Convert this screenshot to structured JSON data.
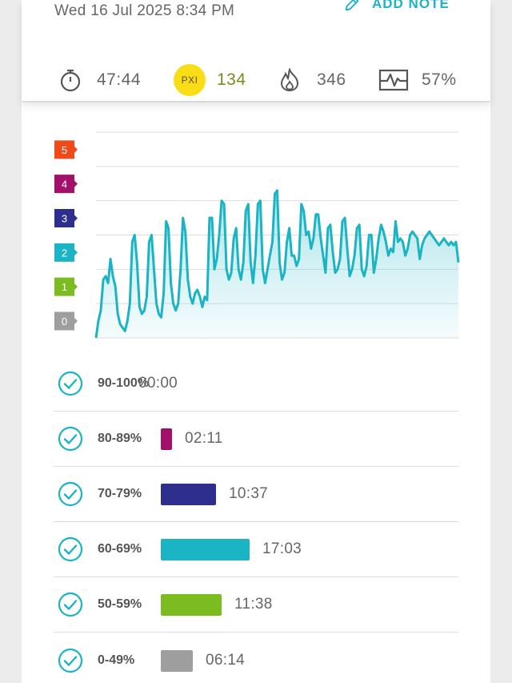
{
  "header": {
    "date": "Wed 16 Jul 2025 8:34 PM",
    "add_note_label": "ADD NOTE",
    "add_note_icon": "pencil-icon"
  },
  "stats": {
    "duration": "47:44",
    "pxi_label": "PXI",
    "pxi_value": "134",
    "calories": "346",
    "effort": "57%"
  },
  "zone_legend": [
    {
      "label": "5",
      "color": "#f04a1a"
    },
    {
      "label": "4",
      "color": "#a2106a"
    },
    {
      "label": "3",
      "color": "#2e2e8e"
    },
    {
      "label": "2",
      "color": "#1ab4c4"
    },
    {
      "label": "1",
      "color": "#7cbc20"
    },
    {
      "label": "0",
      "color": "#9e9e9e"
    }
  ],
  "zones": [
    {
      "label": "90-100%",
      "time": "00:00",
      "color": "#f04a1a",
      "minutes": 0.0
    },
    {
      "label": "80-89%",
      "time": "02:11",
      "color": "#a2106a",
      "minutes": 2.18
    },
    {
      "label": "70-79%",
      "time": "10:37",
      "color": "#2e2e8e",
      "minutes": 10.62
    },
    {
      "label": "60-69%",
      "time": "17:03",
      "color": "#1ab4c4",
      "minutes": 17.05
    },
    {
      "label": "50-59%",
      "time": "11:38",
      "color": "#7cbc20",
      "minutes": 11.63
    },
    {
      "label": "0-49%",
      "time": "06:14",
      "color": "#9e9e9e",
      "minutes": 6.23
    }
  ],
  "chart_data": {
    "type": "area",
    "title": "",
    "xlabel": "",
    "ylabel": "",
    "ylim": [
      0,
      6
    ],
    "y_zone_labels": [
      "0",
      "1",
      "2",
      "3",
      "4",
      "5"
    ],
    "grid": true,
    "line_color": "#1ab4c4",
    "x": [
      0,
      1,
      2,
      3,
      4,
      5,
      6,
      7,
      8,
      9,
      10,
      11,
      12,
      13,
      14,
      15,
      16,
      17,
      18,
      19,
      20,
      21,
      22,
      23,
      24,
      25,
      26,
      27,
      28,
      29,
      30,
      31,
      32,
      33,
      34,
      35,
      36,
      37,
      38,
      39,
      40,
      41,
      42,
      43,
      44,
      45,
      46,
      47,
      48,
      49,
      50,
      51,
      52,
      53,
      54,
      55,
      56,
      57,
      58,
      59,
      60,
      61,
      62,
      63,
      64,
      65,
      66,
      67,
      68,
      69,
      70,
      71,
      72,
      73,
      74,
      75,
      76,
      77,
      78,
      79,
      80,
      81,
      82,
      83,
      84,
      85,
      86,
      87,
      88,
      89,
      90,
      91,
      92,
      93,
      94,
      95,
      96,
      97,
      98,
      99,
      100,
      101,
      102,
      103,
      104,
      105,
      106,
      107,
      108,
      109,
      110,
      111,
      112,
      113,
      114,
      115,
      116,
      117,
      118,
      119,
      120,
      121,
      122,
      123,
      124,
      125,
      126,
      127,
      128,
      129,
      130,
      131,
      132,
      133,
      134,
      135,
      136,
      137,
      138,
      139,
      140,
      141,
      142,
      143,
      144,
      145,
      146,
      147,
      148,
      149,
      150
    ],
    "values": [
      0.0,
      0.5,
      0.8,
      1.7,
      1.8,
      1.6,
      2.3,
      1.8,
      1.5,
      0.7,
      0.4,
      0.3,
      0.2,
      0.5,
      1.0,
      2.8,
      3.0,
      2.2,
      0.9,
      0.7,
      0.8,
      1.2,
      2.8,
      3.0,
      2.0,
      1.0,
      0.7,
      0.6,
      1.3,
      3.4,
      3.2,
      1.6,
      1.0,
      0.8,
      1.0,
      2.0,
      3.5,
      3.1,
      1.7,
      1.2,
      1.0,
      1.3,
      1.4,
      1.2,
      0.9,
      1.2,
      1.1,
      3.5,
      3.5,
      2.0,
      2.3,
      3.0,
      4.0,
      3.9,
      2.0,
      1.7,
      1.9,
      2.9,
      3.2,
      2.0,
      1.7,
      2.2,
      3.7,
      3.9,
      2.2,
      1.6,
      2.4,
      3.9,
      4.0,
      2.0,
      1.6,
      2.0,
      2.4,
      2.8,
      4.2,
      4.3,
      2.2,
      1.7,
      1.9,
      2.8,
      3.2,
      2.4,
      2.4,
      2.1,
      2.3,
      3.9,
      3.7,
      3.0,
      3.1,
      2.6,
      2.9,
      3.6,
      3.6,
      2.9,
      2.4,
      1.9,
      3.2,
      3.3,
      2.5,
      1.9,
      2.0,
      2.3,
      3.4,
      3.5,
      2.6,
      1.8,
      2.0,
      2.4,
      3.2,
      3.3,
      2.0,
      1.8,
      2.1,
      3.0,
      3.0,
      1.9,
      2.3,
      2.9,
      3.3,
      3.1,
      2.8,
      2.4,
      2.6,
      2.5,
      3.4,
      2.8,
      2.9,
      2.8,
      2.4,
      2.6,
      3.0,
      3.1,
      3.0,
      2.9,
      2.3,
      2.7,
      2.9,
      3.0,
      3.1,
      3.0,
      2.9,
      2.8,
      2.7,
      2.8,
      2.9,
      2.8,
      2.7,
      2.8,
      2.7,
      2.8,
      2.2
    ]
  }
}
